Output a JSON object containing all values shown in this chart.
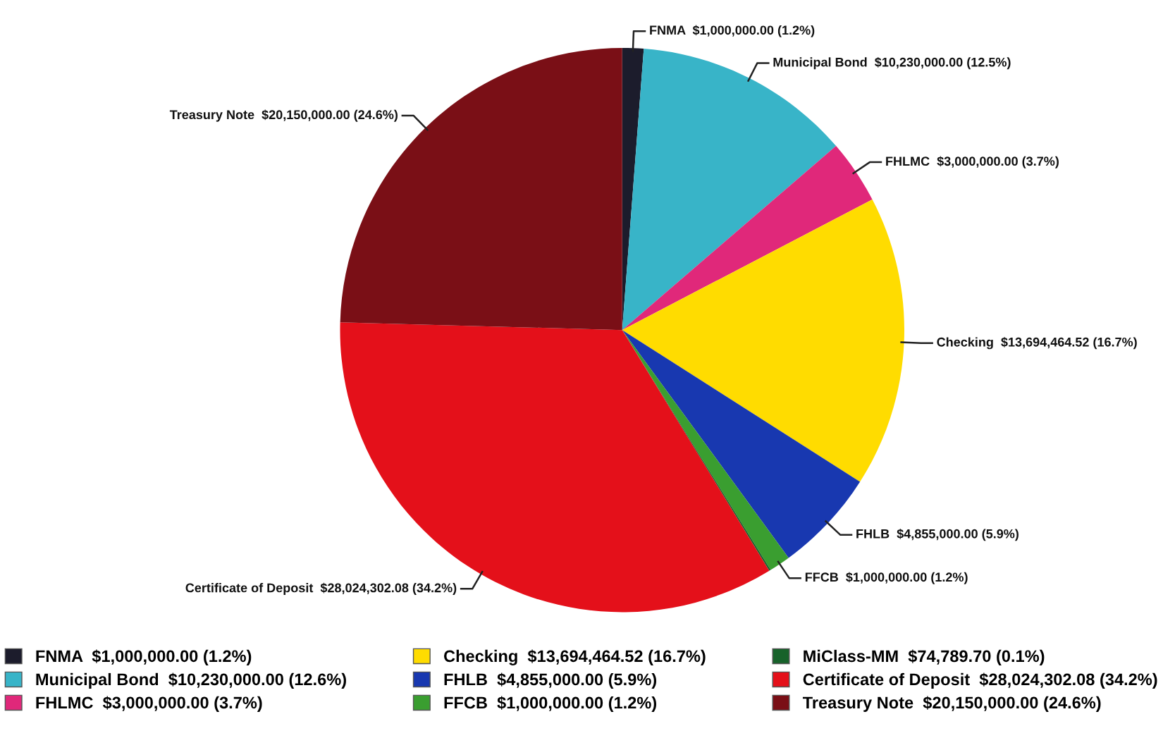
{
  "chart_data": {
    "type": "pie",
    "categories": [
      "FNMA  $1,000,000.00 (1.2%)",
      "Municipal Bond  $10,230,000.00 (12.6%)",
      "FHLMC  $3,000,000.00 (3.7%)",
      "Checking  $13,694,464.52 (16.7%)",
      "FHLB  $4,855,000.00 (5.9%)",
      "FFCB  $1,000,000.00 (1.2%)",
      "MiClass-MM  $74,789.70 (0.1%)",
      "Certificate of Deposit  $28,024,302.08 (34.2%)",
      "Treasury Note  $20,150,000.00 (24.6%)"
    ],
    "values": [
      1000000.0,
      10230000.0,
      3000000.0,
      13694464.52,
      4855000.0,
      1000000.0,
      74789.7,
      28024302.08,
      20150000.0
    ],
    "colors": [
      "#1c1c2c",
      "#38b4c8",
      "#e0287a",
      "#ffdc00",
      "#1838b0",
      "#3a9e30",
      "#17622a",
      "#e4101a",
      "#7a0f16"
    ],
    "value_labels": [
      "FNMA  $1,000,000.00 (1.2%)",
      "Municipal Bond  $10,230,000.00 (12.5%)",
      "FHLMC  $3,000,000.00 (3.7%)",
      "Checking  $13,694,464.52 (16.7%)",
      "FHLB  $4,855,000.00 (5.9%)",
      "FFCB  $1,000,000.00 (1.2%)",
      null,
      "Certificate of Deposit  $28,024,302.08 (34.2%)",
      "Treasury Note  $20,150,000.00 (24.6%)"
    ],
    "legend": "bottom"
  }
}
